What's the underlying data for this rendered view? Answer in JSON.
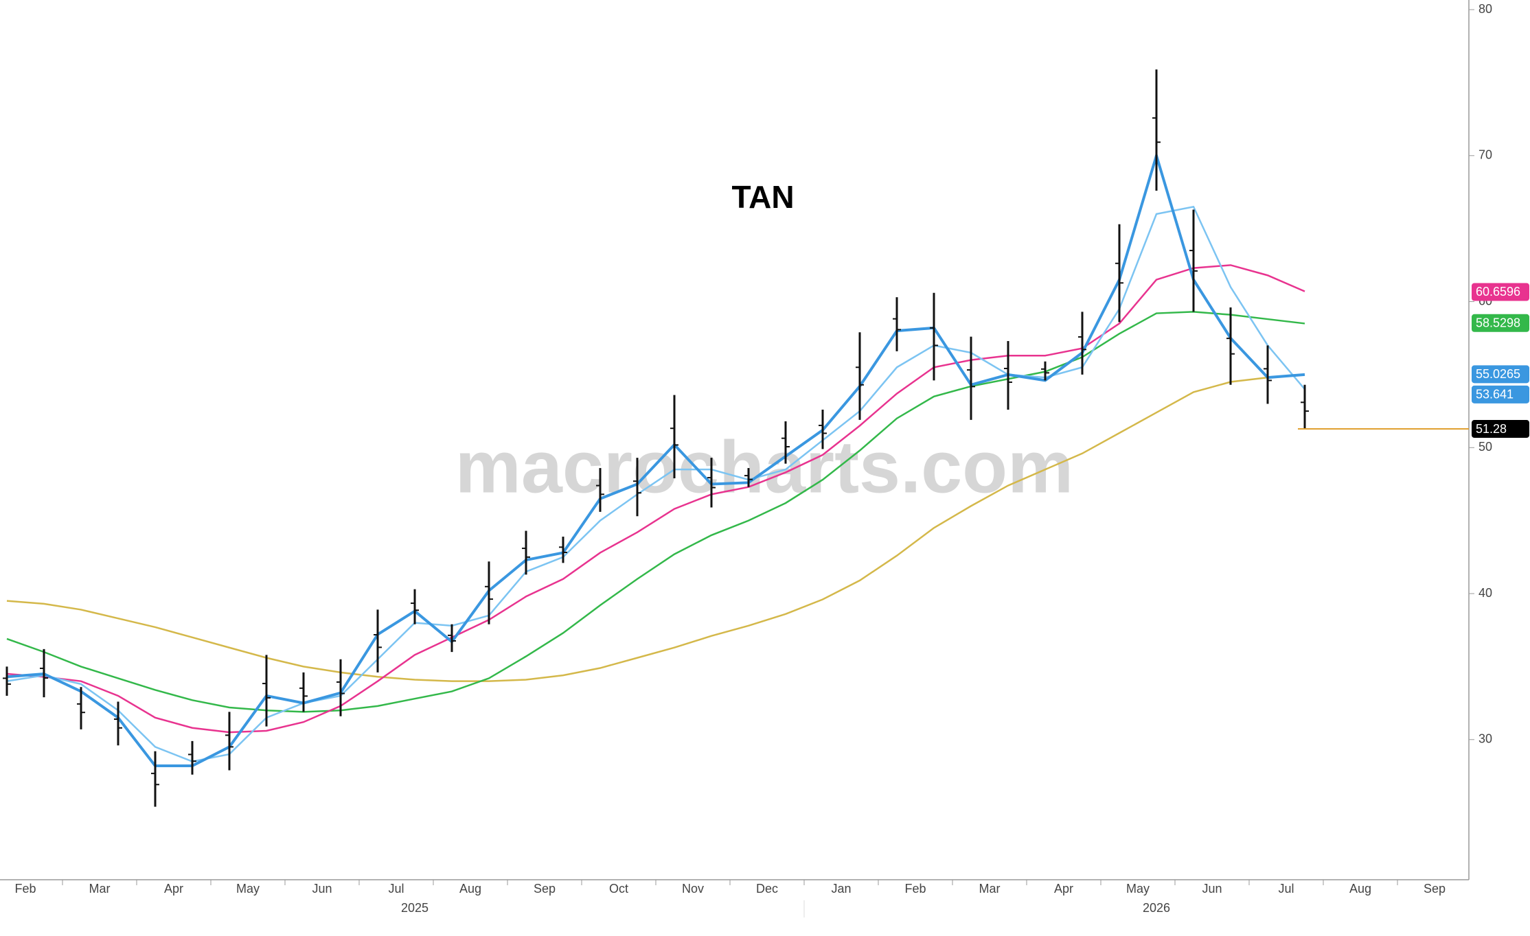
{
  "chart_data": {
    "type": "stock",
    "title": "TAN",
    "watermark": "macrocharts.com",
    "categories": [
      "Feb",
      null,
      "Mar",
      null,
      "Apr",
      null,
      "May",
      null,
      "Jun",
      null,
      "Jul",
      null,
      "Aug",
      null,
      "Sep",
      null,
      "Oct",
      null,
      "Nov",
      null,
      "Dec",
      null,
      "Jan",
      null,
      "Feb",
      null,
      "Mar",
      null,
      "Apr",
      null,
      "May",
      null,
      "Jun",
      null,
      "Jul",
      null,
      "Aug",
      null,
      "Sep",
      null
    ],
    "year_labels": [
      "2025",
      "2026"
    ],
    "bars": {
      "color": "#111111",
      "high": [
        35,
        36.2,
        33.6,
        32.6,
        29.2,
        29.9,
        31.9,
        35.8,
        34.6,
        35.5,
        38.9,
        40.3,
        37.9,
        42.2,
        44.3,
        43.9,
        48.6,
        49.3,
        53.6,
        49.3,
        48.6,
        51.8,
        52.6,
        57.9,
        60.3,
        60.6,
        57.6,
        57.3,
        55.9,
        59.3,
        65.3,
        75.9,
        66.3,
        59.6,
        57,
        54.3,
        null,
        null,
        null,
        null
      ],
      "low": [
        33,
        32.9,
        30.7,
        29.6,
        25.4,
        27.6,
        27.9,
        30.9,
        31.9,
        31.6,
        34.6,
        37.9,
        36,
        37.9,
        41.3,
        42.1,
        45.6,
        45.3,
        47.9,
        45.9,
        47.3,
        48.9,
        49.9,
        51.9,
        56.6,
        54.6,
        51.9,
        52.6,
        54.6,
        55,
        58.6,
        67.6,
        59.3,
        54.3,
        53,
        51.3,
        null,
        null,
        null,
        null
      ]
    },
    "series": [
      {
        "color": "#d4b84a",
        "values": [
          39.5,
          39.3,
          38.9,
          38.3,
          37.7,
          37,
          36.3,
          35.6,
          35,
          34.6,
          34.3,
          34.1,
          34,
          34,
          34.1,
          34.4,
          34.9,
          35.6,
          36.3,
          37.1,
          37.8,
          38.6,
          39.6,
          40.9,
          42.6,
          44.5,
          46,
          47.4,
          48.5,
          49.6,
          51,
          52.4,
          53.8,
          54.5,
          54.8,
          55,
          null,
          null,
          null,
          null
        ]
      },
      {
        "color": "#33b84a",
        "values": [
          36.9,
          36,
          35,
          34.2,
          33.4,
          32.7,
          32.2,
          32,
          31.9,
          32,
          32.3,
          32.8,
          33.3,
          34.2,
          35.7,
          37.3,
          39.2,
          41,
          42.7,
          44,
          45,
          46.2,
          47.8,
          49.8,
          52,
          53.5,
          54.2,
          54.7,
          55.2,
          56.2,
          57.8,
          59.2,
          59.3,
          59.1,
          58.8,
          58.5,
          null,
          null,
          null,
          null
        ]
      },
      {
        "color": "#e8338f",
        "values": [
          34.5,
          34.3,
          34,
          33,
          31.5,
          30.8,
          30.5,
          30.6,
          31.2,
          32.3,
          34,
          35.8,
          37,
          38.2,
          39.8,
          41,
          42.8,
          44.2,
          45.8,
          46.8,
          47.3,
          48.3,
          49.5,
          51.5,
          53.7,
          55.5,
          56,
          56.3,
          56.3,
          56.8,
          58.5,
          61.5,
          62.3,
          62.5,
          61.8,
          60.7,
          null,
          null,
          null,
          null
        ]
      },
      {
        "color": "#7cc4f2",
        "values": [
          34,
          34.4,
          33.8,
          32,
          29.5,
          28.5,
          29,
          31.5,
          32.5,
          33,
          35.5,
          38,
          37.8,
          38.5,
          41.5,
          42.5,
          45,
          46.8,
          48.5,
          48.5,
          47.8,
          48.5,
          50.5,
          52.5,
          55.5,
          57,
          56.5,
          55,
          54.8,
          55.5,
          59.5,
          66,
          66.5,
          61,
          57,
          54,
          null,
          null,
          null,
          null
        ]
      },
      {
        "color": "#3a97e0",
        "values": [
          34.3,
          34.5,
          33.3,
          31.5,
          28.2,
          28.2,
          29.5,
          33,
          32.5,
          33.2,
          37.2,
          38.8,
          36.7,
          40.2,
          42.3,
          42.8,
          46.5,
          47.5,
          50.2,
          47.5,
          47.6,
          49.4,
          51.2,
          54.2,
          58,
          58.2,
          54.3,
          55,
          54.6,
          56.5,
          61.5,
          70,
          61.5,
          57.5,
          54.8,
          55,
          null,
          null,
          null,
          null
        ]
      }
    ],
    "price_labels": [
      {
        "value": 60.6596,
        "color": "#e8338f"
      },
      {
        "value": 58.5298,
        "color": "#33b84a"
      },
      {
        "value": 55.0265,
        "color": "#3a97e0"
      },
      {
        "value": 53.641,
        "color": "#3a97e0"
      },
      {
        "value": 51.28,
        "color": "#000000"
      }
    ],
    "last_line_color": "#e0a030",
    "ylim": [
      20.4,
      80.66
    ],
    "yticks": [
      30,
      40,
      50,
      60,
      70,
      80
    ]
  }
}
